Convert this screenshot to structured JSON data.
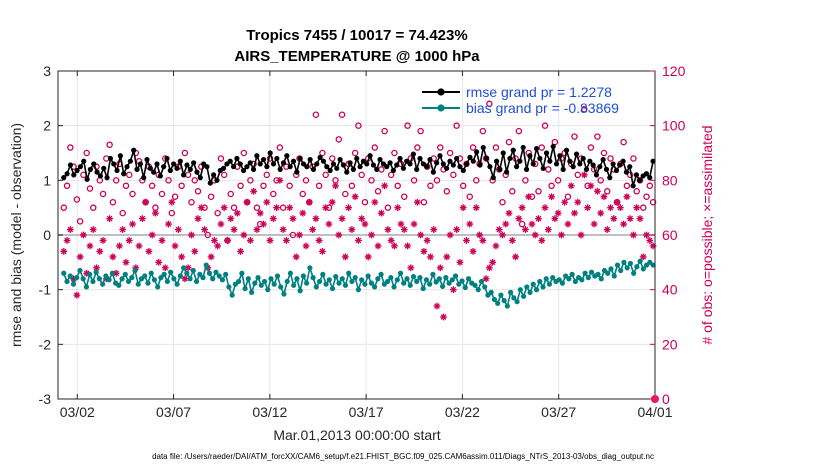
{
  "chart_data": {
    "type": "line",
    "title": "Tropics 7455 / 10017 = 74.423%",
    "subtitle": "AIRS_TEMPERATURE @ 1000 hPa",
    "xlabel": "Mar.01,2013 00:00:00 start",
    "ylabel": "rmse and bias (model - observation)",
    "y2label": "# of obs: o=possible; ×=assimilated",
    "footer": "data file: /Users/raeder/DAI/ATM_forcXX/CAM6_setup/f.e21.FHIST_BGC.f09_025.CAM6assim.011/Diags_NTrS_2013-03/obs_diag_output.nc",
    "x_ticks": [
      "03/02",
      "03/07",
      "03/12",
      "03/17",
      "03/22",
      "03/27",
      "04/01"
    ],
    "x_tick_days": [
      1,
      6,
      11,
      16,
      21,
      26,
      31
    ],
    "xlim": [
      0,
      31
    ],
    "ylim": [
      -3,
      3
    ],
    "y_ticks": [
      "-3",
      "-2",
      "-1",
      "0",
      "1",
      "2",
      "3"
    ],
    "y2lim": [
      0,
      120
    ],
    "y2_ticks": [
      "0",
      "20",
      "40",
      "60",
      "80",
      "100",
      "120"
    ],
    "series": [
      {
        "name": "rmse grand pr = 1.2278",
        "color": "#000000",
        "marker": "dot",
        "values": [
          1.05,
          1.12,
          1.28,
          1.1,
          1.18,
          1.25,
          1.35,
          1.02,
          1.2,
          1.3,
          1.15,
          1.08,
          1.22,
          1.05,
          1.4,
          1.3,
          1.18,
          1.45,
          1.12,
          1.25,
          1.35,
          1.55,
          1.2,
          1.3,
          1.05,
          1.38,
          1.22,
          1.15,
          1.3,
          1.08,
          1.25,
          1.4,
          1.18,
          1.3,
          1.22,
          1.35,
          1.1,
          1.28,
          1.2,
          1.32,
          1.15,
          1.05,
          1.3,
          1.25,
          0.95,
          1.1,
          1.0,
          1.18,
          1.22,
          1.3,
          1.35,
          1.25,
          1.4,
          1.3,
          1.18,
          1.25,
          1.32,
          1.2,
          1.45,
          1.3,
          1.38,
          1.25,
          1.5,
          1.3,
          1.4,
          1.2,
          1.32,
          1.45,
          1.25,
          1.35,
          1.15,
          1.4,
          1.3,
          1.25,
          1.38,
          1.2,
          1.3,
          1.42,
          1.35,
          1.25,
          1.18,
          1.3,
          1.22,
          1.38,
          1.28,
          1.15,
          1.32,
          1.2,
          1.4,
          1.25,
          1.35,
          1.3,
          1.45,
          1.28,
          1.2,
          1.38,
          1.3,
          1.25,
          1.32,
          1.18,
          1.28,
          1.4,
          1.22,
          1.35,
          1.3,
          1.48,
          1.2,
          1.4,
          1.3,
          1.25,
          1.38,
          1.15,
          1.32,
          1.45,
          1.3,
          1.22,
          1.35,
          1.28,
          1.4,
          1.25,
          1.18,
          1.3,
          1.42,
          1.35,
          1.52,
          1.28,
          1.6,
          1.4,
          1.25,
          1.05,
          1.35,
          1.2,
          1.5,
          1.15,
          1.4,
          1.55,
          1.25,
          1.35,
          1.6,
          1.2,
          1.45,
          1.3,
          1.58,
          1.4,
          1.22,
          1.5,
          1.35,
          1.62,
          1.3,
          1.45,
          1.2,
          1.55,
          1.35,
          1.25,
          1.48,
          1.3,
          1.4,
          1.2,
          1.35,
          1.28,
          1.1,
          1.25,
          1.38,
          1.2,
          1.05,
          1.3,
          1.18,
          1.28,
          1.35,
          1.15,
          1.25,
          0.9,
          1.1,
          1.0,
          1.08,
          1.12,
          1.05,
          1.35
        ]
      },
      {
        "name": "bias grand pr = -0.83869",
        "color": "#008080",
        "marker": "dot",
        "values": [
          -0.7,
          -0.85,
          -0.75,
          -0.9,
          -0.78,
          -0.65,
          -0.8,
          -0.95,
          -0.72,
          -0.85,
          -0.68,
          -0.8,
          -0.9,
          -0.75,
          -0.82,
          -0.7,
          -0.88,
          -0.92,
          -0.8,
          -0.72,
          -0.85,
          -0.78,
          -0.65,
          -0.9,
          -0.8,
          -0.75,
          -0.88,
          -0.7,
          -0.82,
          -0.95,
          -0.78,
          -0.72,
          -0.85,
          -0.68,
          -0.8,
          -0.9,
          -0.75,
          -0.6,
          -0.7,
          -0.8,
          -0.65,
          -0.85,
          -0.72,
          -0.78,
          -0.55,
          -0.7,
          -0.8,
          -0.68,
          -0.75,
          -0.82,
          -0.72,
          -0.95,
          -1.1,
          -0.9,
          -0.85,
          -0.7,
          -0.98,
          -0.8,
          -1.05,
          -0.88,
          -0.78,
          -0.92,
          -0.85,
          -1.0,
          -0.8,
          -0.9,
          -0.75,
          -0.95,
          -1.08,
          -0.85,
          -0.7,
          -0.92,
          -0.8,
          -1.02,
          -0.75,
          -0.88,
          -0.6,
          -0.78,
          -0.95,
          -0.85,
          -0.72,
          -0.9,
          -0.82,
          -0.98,
          -0.76,
          -0.88,
          -0.8,
          -0.92,
          -0.7,
          -0.85,
          -0.78,
          -1.0,
          -0.82,
          -0.9,
          -0.75,
          -0.88,
          -0.95,
          -0.8,
          -0.72,
          -0.9,
          -0.85,
          -0.78,
          -0.95,
          -0.82,
          -0.7,
          -0.88,
          -0.8,
          -0.92,
          -0.76,
          -0.85,
          -0.78,
          -0.98,
          -0.82,
          -0.9,
          -0.72,
          -0.86,
          -0.8,
          -0.94,
          -0.78,
          -0.88,
          -0.82,
          -0.75,
          -0.9,
          -0.84,
          -0.96,
          -0.8,
          -0.88,
          -0.92,
          -1.0,
          -0.85,
          -0.95,
          -1.1,
          -1.05,
          -1.18,
          -1.25,
          -1.1,
          -1.2,
          -1.3,
          -1.05,
          -1.15,
          -1.22,
          -1.0,
          -1.12,
          -0.95,
          -1.05,
          -0.9,
          -1.0,
          -0.85,
          -0.95,
          -0.8,
          -0.9,
          -0.78,
          -0.85,
          -0.82,
          -0.88,
          -0.75,
          -0.8,
          -0.72,
          -0.85,
          -0.78,
          -0.82,
          -0.7,
          -0.78,
          -0.68,
          -0.75,
          -0.72,
          -0.8,
          -0.65,
          -0.7,
          -0.62,
          -0.75,
          -0.55,
          -0.65,
          -0.5,
          -0.6,
          -0.52,
          -0.7,
          -0.58,
          -0.48,
          -0.62,
          -0.55,
          -0.5,
          -0.55
        ]
      }
    ],
    "obs_possible": {
      "name": "possible",
      "marker": "o",
      "color": "#cc0058",
      "values": [
        70,
        78,
        92,
        85,
        73,
        65,
        82,
        90,
        77,
        70,
        85,
        80,
        75,
        88,
        93,
        72,
        80,
        86,
        68,
        78,
        82,
        75,
        90,
        87,
        80,
        72,
        85,
        78,
        70,
        82,
        75,
        88,
        80,
        68,
        74,
        85,
        78,
        90,
        82,
        72,
        80,
        76,
        85,
        70,
        60,
        74,
        80,
        68,
        88,
        82,
        58,
        75,
        70,
        85,
        78,
        90,
        72,
        80,
        86,
        70,
        64,
        78,
        82,
        88,
        75,
        80,
        92,
        70,
        85,
        78,
        60,
        82,
        88,
        75,
        80,
        72,
        85,
        104,
        78,
        90,
        82,
        70,
        88,
        80,
        95,
        104,
        75,
        86,
        78,
        90,
        100,
        82,
        72,
        88,
        80,
        92,
        76,
        84,
        98,
        70,
        82,
        90,
        78,
        86,
        74,
        100,
        88,
        80,
        92,
        98,
        72,
        85,
        78,
        88,
        80,
        92,
        84,
        76,
        90,
        82,
        100,
        88,
        78,
        86,
        74,
        92,
        80,
        86,
        98,
        88,
        108,
        80,
        92,
        84,
        72,
        82,
        94,
        76,
        88,
        98,
        64,
        80,
        90,
        74,
        86,
        76,
        92,
        100,
        84,
        78,
        94,
        80,
        88,
        90,
        74,
        86,
        96,
        82,
        88,
        106,
        78,
        92,
        84,
        96,
        80,
        90,
        76,
        88,
        84,
        72,
        86,
        94,
        78,
        82,
        88,
        76,
        80,
        70,
        74,
        78,
        72
      ]
    },
    "obs_assimilated": {
      "name": "assimilated",
      "marker": "*",
      "color": "#cc0058",
      "values": [
        54,
        58,
        62,
        44,
        38,
        52,
        60,
        46,
        56,
        62,
        48,
        54,
        58,
        44,
        66,
        52,
        46,
        56,
        62,
        50,
        58,
        64,
        48,
        56,
        66,
        72,
        54,
        60,
        68,
        50,
        58,
        48,
        64,
        72,
        56,
        62,
        52,
        44,
        48,
        60,
        54,
        66,
        70,
        62,
        48,
        52,
        58,
        56,
        64,
        70,
        58,
        66,
        62,
        68,
        54,
        60,
        72,
        58,
        76,
        62,
        68,
        64,
        72,
        58,
        66,
        70,
        80,
        62,
        58,
        70,
        66,
        52,
        60,
        68,
        56,
        72,
        62,
        66,
        58,
        54,
        70,
        64,
        72,
        78,
        60,
        66,
        52,
        70,
        62,
        74,
        58,
        66,
        64,
        52,
        60,
        72,
        56,
        68,
        78,
        62,
        58,
        56,
        70,
        64,
        62,
        56,
        48,
        64,
        72,
        60,
        54,
        58,
        52,
        62,
        34,
        48,
        30,
        52,
        60,
        40,
        62,
        50,
        70,
        58,
        64,
        54,
        70,
        60,
        58,
        44,
        48,
        50,
        56,
        62,
        60,
        64,
        68,
        58,
        52,
        66,
        70,
        62,
        74,
        64,
        60,
        66,
        58,
        70,
        62,
        74,
        66,
        68,
        60,
        72,
        64,
        78,
        68,
        72,
        60,
        82,
        70,
        78,
        64,
        76,
        68,
        74,
        62,
        70,
        66,
        72,
        70,
        64,
        74,
        66,
        60,
        70,
        66,
        52,
        60,
        58,
        56
      ]
    }
  }
}
